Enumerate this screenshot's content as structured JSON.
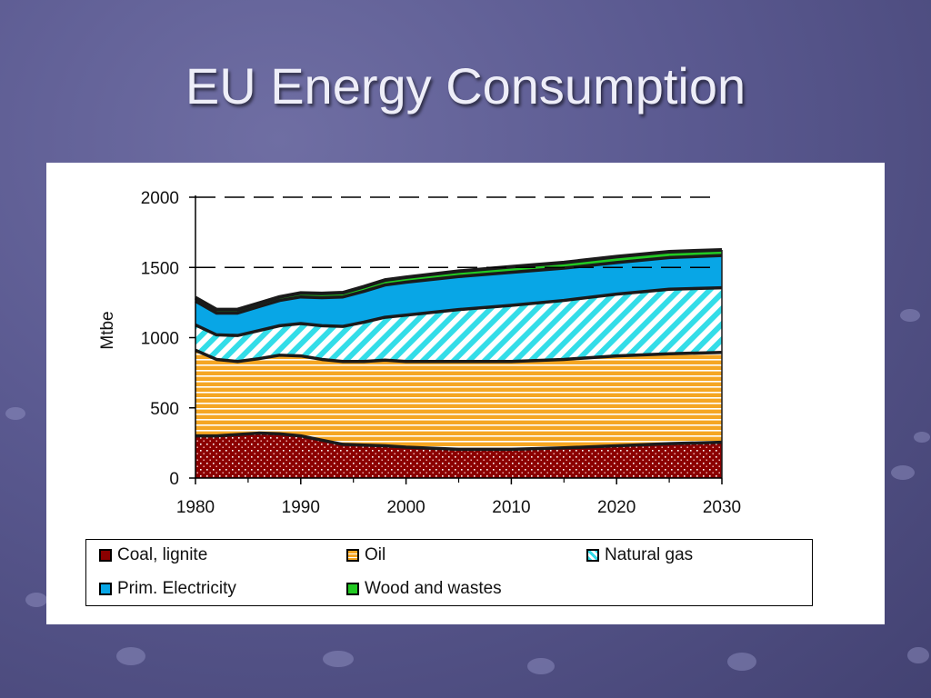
{
  "slide": {
    "title": "EU Energy Consumption"
  },
  "colors": {
    "coal": "#8b0000",
    "oil": "#f5a623",
    "gas": "#33dde8",
    "electricity": "#08a6e6",
    "wood": "#22c922",
    "outline": "#1a1a1a"
  },
  "chart_data": {
    "type": "area",
    "stacked": true,
    "ylabel": "Mtbe",
    "xlabel": "",
    "ylim": [
      0,
      2000
    ],
    "xlim": [
      1980,
      2030
    ],
    "yticks": [
      "0",
      "500",
      "1000",
      "1500",
      "2000"
    ],
    "xticks": [
      "1980",
      "1990",
      "2000",
      "2010",
      "2020",
      "2030"
    ],
    "grid": "dashed lines at 1500 and 2000",
    "legend_position": "bottom",
    "x": [
      1980,
      1982,
      1984,
      1986,
      1988,
      1990,
      1992,
      1994,
      1996,
      1998,
      2000,
      2005,
      2010,
      2015,
      2020,
      2025,
      2030
    ],
    "series": [
      {
        "name": "Coal, lignite",
        "key": "coal",
        "values": [
          300,
          300,
          310,
          320,
          315,
          300,
          270,
          240,
          235,
          230,
          220,
          205,
          205,
          215,
          230,
          245,
          255
        ]
      },
      {
        "name": "Oil",
        "key": "oil",
        "values": [
          610,
          545,
          520,
          530,
          560,
          570,
          575,
          590,
          595,
          610,
          610,
          625,
          625,
          630,
          640,
          640,
          640
        ]
      },
      {
        "name": "Natural gas",
        "key": "gas",
        "values": [
          180,
          175,
          185,
          200,
          210,
          230,
          240,
          250,
          280,
          305,
          330,
          370,
          400,
          420,
          440,
          460,
          460
        ]
      },
      {
        "name": "Prim. Electricity",
        "key": "electricity",
        "values": [
          170,
          155,
          160,
          170,
          180,
          190,
          200,
          210,
          220,
          230,
          235,
          235,
          235,
          230,
          225,
          225,
          230
        ]
      },
      {
        "name": "Wood and wastes",
        "key": "wood",
        "values": [
          25,
          25,
          25,
          25,
          25,
          28,
          30,
          30,
          33,
          35,
          35,
          38,
          40,
          40,
          42,
          42,
          40
        ]
      }
    ]
  }
}
